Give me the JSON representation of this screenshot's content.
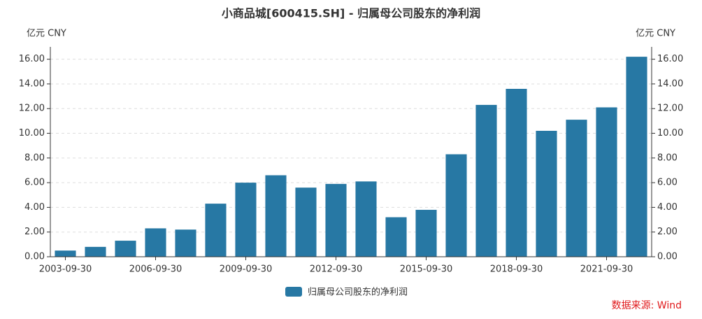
{
  "chart_data": {
    "type": "bar",
    "title": "小商品城[600415.SH] - 归属母公司股东的净利润",
    "y_axis_label": "亿元  CNY",
    "y2_axis_label": "亿元  CNY",
    "categories": [
      "2003-09-30",
      null,
      null,
      "2006-09-30",
      null,
      null,
      "2009-09-30",
      null,
      null,
      "2012-09-30",
      null,
      null,
      "2015-09-30",
      null,
      null,
      "2018-09-30",
      null,
      null,
      "2021-09-30",
      null
    ],
    "series": [
      {
        "name": "归属母公司股东的净利润",
        "color": "#2778a4",
        "values": [
          0.5,
          0.8,
          1.3,
          2.3,
          2.2,
          4.3,
          6.0,
          6.6,
          5.6,
          5.9,
          6.1,
          3.2,
          3.8,
          8.3,
          12.3,
          13.6,
          10.2,
          11.1,
          12.1,
          16.2
        ]
      }
    ],
    "ylim": [
      0,
      17
    ],
    "yticks": [
      {
        "value": 0,
        "label": "0.00"
      },
      {
        "value": 2,
        "label": "2.00"
      },
      {
        "value": 4,
        "label": "4.00"
      },
      {
        "value": 6,
        "label": "6.00"
      },
      {
        "value": 8,
        "label": "8.00"
      },
      {
        "value": 10,
        "label": "10.00"
      },
      {
        "value": 12,
        "label": "12.00"
      },
      {
        "value": 14,
        "label": "14.00"
      },
      {
        "value": 16,
        "label": "16.00"
      }
    ],
    "y2lim": [
      0,
      17
    ],
    "y2ticks": [
      {
        "value": 0,
        "label": "0.00"
      },
      {
        "value": 2,
        "label": "2.00"
      },
      {
        "value": 4,
        "label": "4.00"
      },
      {
        "value": 6,
        "label": "6.00"
      },
      {
        "value": 8,
        "label": "8.00"
      },
      {
        "value": 10,
        "label": "10.00"
      },
      {
        "value": 12,
        "label": "12.00"
      },
      {
        "value": 14,
        "label": "14.00"
      },
      {
        "value": 16,
        "label": "16.00"
      }
    ],
    "grid": true,
    "source": "数据来源: Wind"
  }
}
